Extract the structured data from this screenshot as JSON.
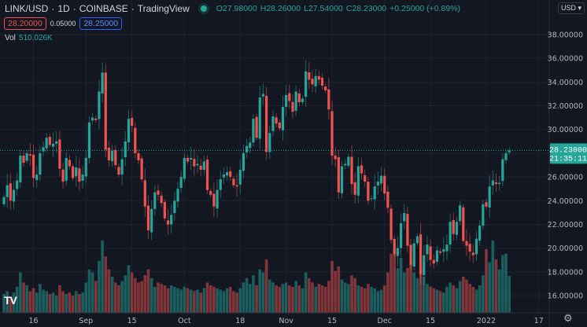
{
  "header": {
    "symbol": "LINK/USD",
    "interval": "1D",
    "exchange": "COINBASE",
    "source": "TradingView",
    "open": "O27.98000",
    "high": "H28.26000",
    "low": "L27.54000",
    "close": "C28.23000",
    "change": "+0.25000 (+0.89%)",
    "sell_price": "28.20000",
    "spread": "0.05000",
    "buy_price": "28.25000",
    "volume_label": "Vol",
    "volume_value": "510.026K",
    "currency_button": "USD"
  },
  "last_price": {
    "label": "28.23000",
    "countdown": "21:35:11"
  },
  "colors": {
    "up": "#26a69a",
    "down": "#ef5350",
    "background": "#131722",
    "grid": "#1f2330"
  },
  "chart_data": {
    "type": "candlestick",
    "price_ticks": [
      "16.00000",
      "18.00000",
      "20.00000",
      "22.00000",
      "24.00000",
      "26.00000",
      "28.00000",
      "30.00000",
      "32.00000",
      "34.00000",
      "36.00000",
      "38.00000"
    ],
    "price_tick_values": [
      16,
      18,
      20,
      22,
      24,
      26,
      28,
      30,
      32,
      34,
      36,
      38
    ],
    "ylim": [
      15.0,
      40.0
    ],
    "time_ticks": [
      {
        "label": "16",
        "day": 9
      },
      {
        "label": "Sep",
        "day": 25
      },
      {
        "label": "15",
        "day": 39
      },
      {
        "label": "Oct",
        "day": 55
      },
      {
        "label": "18",
        "day": 72
      },
      {
        "label": "Nov",
        "day": 86
      },
      {
        "label": "15",
        "day": 100
      },
      {
        "label": "Dec",
        "day": 116
      },
      {
        "label": "15",
        "day": 130
      },
      {
        "label": "2022",
        "day": 147
      },
      {
        "label": "17",
        "day": 163
      }
    ],
    "closes": [
      24.3,
      25.3,
      24.0,
      24.9,
      25.7,
      27.8,
      27.2,
      28.0,
      27.8,
      25.9,
      26.2,
      28.0,
      28.5,
      29.3,
      28.7,
      28.8,
      29.0,
      26.7,
      25.6,
      27.6,
      26.9,
      25.9,
      26.8,
      25.6,
      26.2,
      27.6,
      30.6,
      31.0,
      30.8,
      33.2,
      34.8,
      28.3,
      27.4,
      28.2,
      27.0,
      26.2,
      27.5,
      29.0,
      30.9,
      30.3,
      28.0,
      27.4,
      25.8,
      23.5,
      21.5,
      23.3,
      24.7,
      24.5,
      23.8,
      22.5,
      22.0,
      22.8,
      24.0,
      25.0,
      26.0,
      27.6,
      27.3,
      27.6,
      26.9,
      27.1,
      26.6,
      27.3,
      24.9,
      24.5,
      23.5,
      24.9,
      25.8,
      26.2,
      26.4,
      26.0,
      25.3,
      25.2,
      26.6,
      28.0,
      28.6,
      28.9,
      30.9,
      29.3,
      32.7,
      33.0,
      28.1,
      29.7,
      31.1,
      30.5,
      30.1,
      31.9,
      32.9,
      32.4,
      31.5,
      33.2,
      32.3,
      32.6,
      34.9,
      34.2,
      33.8,
      34.5,
      34.2,
      33.7,
      33.3,
      31.7,
      27.8,
      27.5,
      24.7,
      26.9,
      27.1,
      27.7,
      25.4,
      24.5,
      26.9,
      26.3,
      25.6,
      24.0,
      24.2,
      25.2,
      25.6,
      26.1,
      24.6,
      23.4,
      20.7,
      19.5,
      20.0,
      22.1,
      22.96,
      20.2,
      18.6,
      20.4,
      21.0,
      17.8,
      19.4,
      20.3,
      19.0,
      18.7,
      19.8,
      19.6,
      19.9,
      20.3,
      22.2,
      21.2,
      22.2,
      23.6,
      20.6,
      20.2,
      19.7,
      19.4,
      20.8,
      21.9,
      23.7,
      23.5,
      25.2,
      25.7,
      25.4,
      25.5,
      27.5,
      28.0,
      28.23
    ],
    "volumes_k": [
      260,
      300,
      220,
      280,
      360,
      560,
      420,
      380,
      300,
      340,
      280,
      400,
      320,
      300,
      260,
      280,
      240,
      380,
      300,
      260,
      280,
      240,
      300,
      260,
      280,
      420,
      600,
      560,
      440,
      720,
      1000,
      780,
      600,
      500,
      420,
      380,
      440,
      520,
      660,
      560,
      480,
      420,
      440,
      520,
      600,
      480,
      360,
      420,
      400,
      380,
      340,
      380,
      360,
      340,
      320,
      360,
      340,
      320,
      300,
      320,
      280,
      340,
      420,
      380,
      360,
      340,
      320,
      300,
      340,
      360,
      300,
      280,
      340,
      420,
      480,
      400,
      520,
      380,
      600,
      560,
      740,
      460,
      420,
      380,
      360,
      400,
      420,
      380,
      360,
      440,
      380,
      340,
      560,
      480,
      420,
      360,
      400,
      380,
      360,
      440,
      720,
      580,
      640,
      460,
      420,
      400,
      520,
      480,
      380,
      360,
      340,
      400,
      360,
      340,
      300,
      320,
      380,
      560,
      820,
      860,
      620,
      760,
      560,
      620,
      700,
      560,
      480,
      620,
      500,
      400,
      360,
      340,
      320,
      300,
      280,
      360,
      420,
      380,
      340,
      440,
      500,
      460,
      400,
      360,
      320,
      380,
      520,
      880,
      700,
      1000,
      740,
      600,
      800,
      820,
      510
    ]
  }
}
